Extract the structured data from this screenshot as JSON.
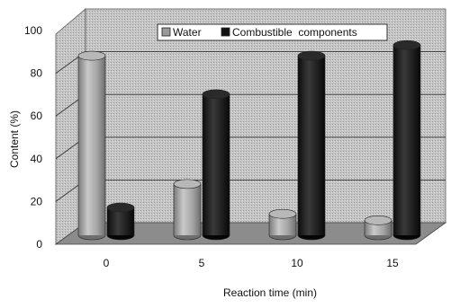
{
  "chart_data": {
    "type": "bar",
    "subtype": "3d-clustered-cylinder",
    "categories": [
      "0",
      "5",
      "10",
      "15"
    ],
    "series": [
      {
        "name": "Water",
        "values": [
          84,
          24,
          10,
          7
        ],
        "color": "#a8a8a8"
      },
      {
        "name": "Combustible  components",
        "values": [
          13,
          66,
          84,
          89
        ],
        "color": "#1e1e1e"
      }
    ],
    "xlabel": "Reaction time (min)",
    "ylabel": "Content (%)",
    "ylim": [
      0,
      100
    ],
    "yticks": [
      "0",
      "20",
      "40",
      "60",
      "80",
      "100"
    ],
    "grid": true,
    "legend_position": "top-center",
    "colors": {
      "wall": "#cfcfcf",
      "floor": "#8c8c8c",
      "side_wall": "#d6d6d6"
    }
  }
}
